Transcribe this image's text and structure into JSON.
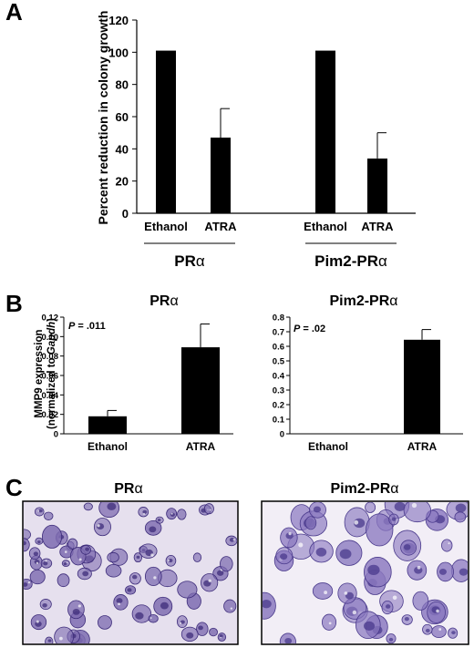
{
  "panels": {
    "a": "A",
    "b": "B",
    "c": "C"
  },
  "greek_alpha": "α",
  "chart_data": [
    {
      "id": "A",
      "type": "bar",
      "ylabel": "Percent reduction in colony growth",
      "ylim": [
        0,
        120
      ],
      "yticks": [
        0,
        20,
        40,
        60,
        80,
        100,
        120
      ],
      "groups": [
        {
          "label": "PR",
          "label_suffix": "α",
          "categories": [
            "Ethanol",
            "ATRA"
          ],
          "values": [
            101,
            47
          ],
          "errors": [
            0,
            18
          ]
        },
        {
          "label": "Pim2-PR",
          "label_suffix": "α",
          "categories": [
            "Ethanol",
            "ATRA"
          ],
          "values": [
            101,
            34
          ],
          "errors": [
            0,
            16
          ]
        }
      ],
      "bar_color": "#000000"
    },
    {
      "id": "B-left",
      "type": "bar",
      "title": "PR",
      "title_suffix": "α",
      "ylabel_line1": "MMP9 expression",
      "ylabel_line2_prefix": "(normalized to ",
      "ylabel_line2_italic": "Gapdh",
      "ylabel_line2_suffix": ")",
      "ylim": [
        0,
        0.12
      ],
      "yticks": [
        "0",
        "0.02",
        "0.04",
        "0.06",
        "0.08",
        "0.10",
        "0.12"
      ],
      "categories": [
        "Ethanol",
        "ATRA"
      ],
      "values": [
        0.018,
        0.089
      ],
      "errors": [
        0.006,
        0.024
      ],
      "p_label": "P",
      "p_value": " = .011"
    },
    {
      "id": "B-right",
      "type": "bar",
      "title": "Pim2-PR",
      "title_suffix": "α",
      "ylim": [
        0,
        0.8
      ],
      "yticks": [
        "0",
        "0.1",
        "0.2",
        "0.3",
        "0.4",
        "0.5",
        "0.6",
        "0.7",
        "0.8"
      ],
      "categories": [
        "Ethanol",
        "ATRA"
      ],
      "values": [
        0.003,
        0.645
      ],
      "errors": [
        0,
        0.07
      ],
      "p_label": "P",
      "p_value": " = .02"
    }
  ],
  "micrographs": [
    {
      "title": "PR",
      "title_suffix": "α",
      "background": "#e6e0ee",
      "cell_color": "#7d6bb0",
      "nucleus_color": "#3d2c7a"
    },
    {
      "title": "Pim2-PR",
      "title_suffix": "α",
      "background": "#f2eef6",
      "cell_color": "#8a78bf",
      "nucleus_color": "#4a3a8c"
    }
  ]
}
